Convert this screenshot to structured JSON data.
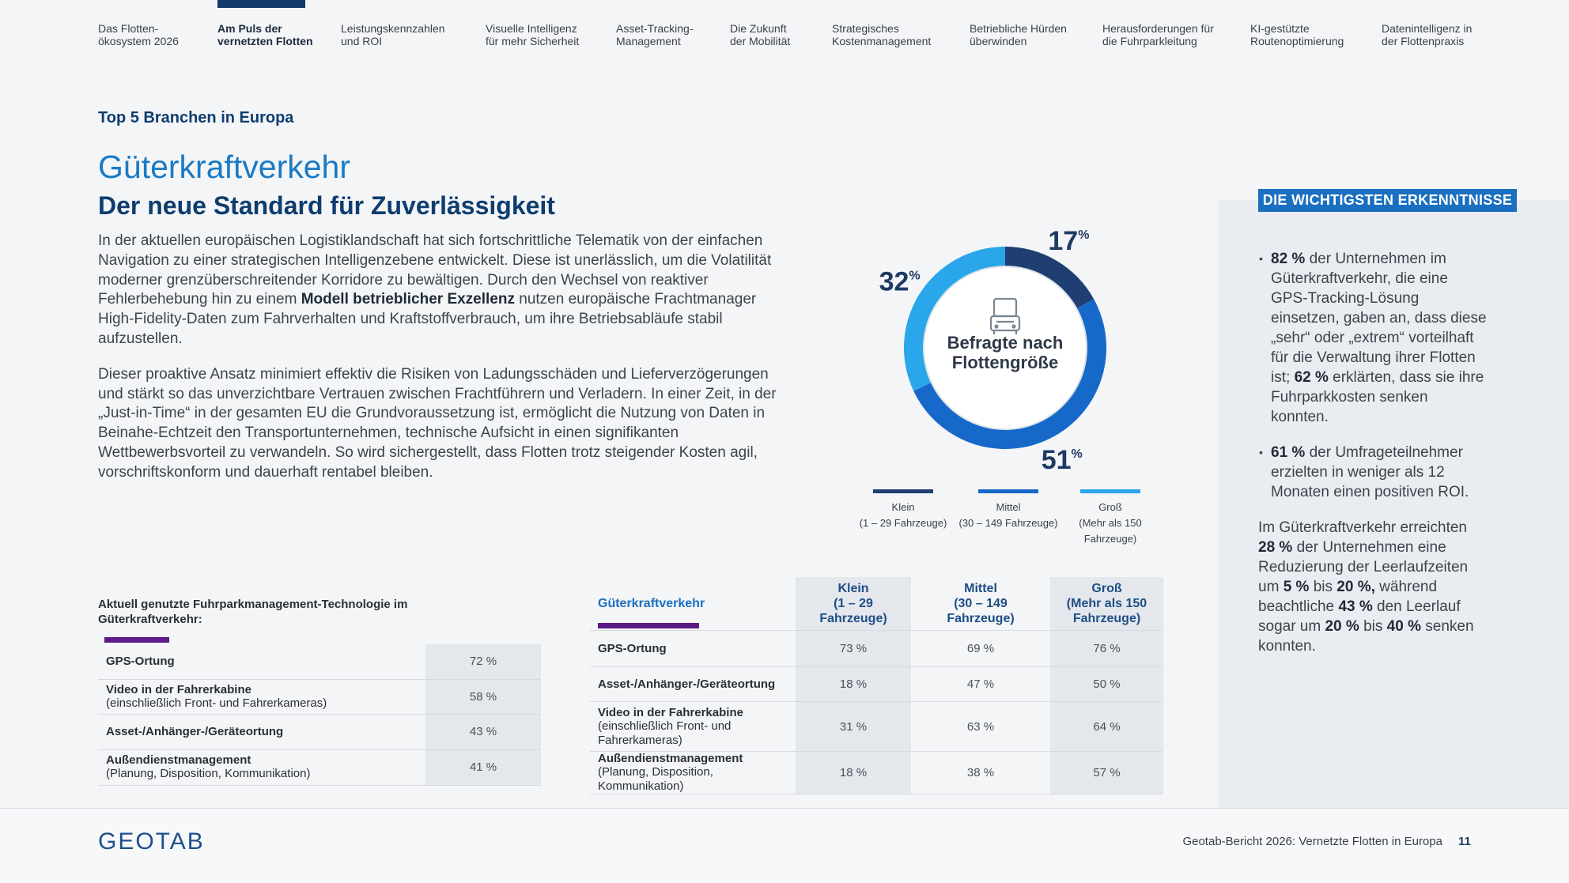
{
  "nav": [
    "Das Flotten-\nökosystem 2026",
    "Am Puls der\nvernetzten Flotten",
    "Leistungskennzahlen\nund ROI",
    "Visuelle Intelligenz\nfür mehr Sicherheit",
    "Asset-Tracking-\nManagement",
    "Die Zukunft\nder Mobilität",
    "Strategisches\nKostenmanagement",
    "Betriebliche Hürden\nüberwinden",
    "Herausforderungen für\ndie Fuhrparkleitung",
    "KI-gestützte\nRoutenoptimierung",
    "Datenintelligenz in\nder Flottenpraxis"
  ],
  "section_label": "Top 5 Branchen in Europa",
  "title": "Güterkraftverkehr",
  "subtitle": "Der neue Standard für Zuverlässigkeit",
  "body": [
    [
      "In der aktuellen europäischen Logistiklandschaft hat sich fortschrittliche Telematik von der einfachen Navigation zu einer strategischen Intelligenzebene entwickelt. Diese ist unerlässlich, um die Volatilität moderner grenzüberschreitender Korridore zu bewältigen. Durch den Wechsel von reaktiver Fehlerbehebung hin zu einem ",
      {
        "bold": "Modell betrieblicher Exzellenz"
      },
      " nutzen europäische Frachtmanager High-Fidelity-Daten zum Fahrverhalten und Kraftstoffverbrauch, um ihre Betriebsabläufe stabil aufzustellen."
    ],
    [
      "Dieser proaktive Ansatz minimiert effektiv die Risiken von Ladungsschäden und Lieferverzögerungen und stärkt so das unverzichtbare Vertrauen zwischen Frachtführern und Verladern. In einer Zeit, in der „Just-in-Time“ in der gesamten EU die Grundvoraussetzung ist, ermöglicht die Nutzung von Daten in Beinahe-Echtzeit den Transportunternehmen, technische Aufsicht in einen signifikanten Wettbewerbsvorteil zu verwandeln. So wird sichergestellt, dass Flotten trotz steigender Kosten agil, vorschriftskonform und dauerhaft rentabel bleiben."
    ]
  ],
  "chart_data": {
    "type": "donut",
    "center_label": "Befragte nach\nFlottengröße",
    "categories": [
      "Klein\n(1 – 29 Fahrzeuge)",
      "Mittel\n(30 – 149 Fahrzeuge)",
      "Groß\n(Mehr als 150 Fahrzeuge)"
    ],
    "values": [
      17,
      51,
      32
    ],
    "value_labels": [
      "17%",
      "51%",
      "32%"
    ],
    "colors": [
      "#1f3f73",
      "#1669c9",
      "#2aa6ea"
    ]
  },
  "tech_table": {
    "title": "Aktuell genutzte Fuhrparkmanagement-Technologie im Güterkraftverkehr:",
    "rows": [
      {
        "label": "GPS-Ortung",
        "value": "72 %"
      },
      {
        "label": "Video in der Fahrerkabine",
        "note": "(einschließlich Front- und Fahrerkameras)",
        "value": "58 %"
      },
      {
        "label": "Asset-/Anhänger-/Geräteortung",
        "value": "43 %"
      },
      {
        "label": "Außendienstmanagement",
        "note": "(Planung, Disposition, Kommunikation)",
        "value": "41 %"
      }
    ]
  },
  "size_table": {
    "header": [
      "Güterkraftverkehr",
      "Klein\n(1 – 29 Fahrzeuge)",
      "Mittel\n(30 – 149 Fahrzeuge)",
      "Groß\n(Mehr als 150\nFahrzeuge)"
    ],
    "rows": [
      {
        "label": "GPS-Ortung",
        "values": [
          "73 %",
          "69 %",
          "76 %"
        ]
      },
      {
        "label": "Asset-/Anhänger-/Geräteortung",
        "values": [
          "18 %",
          "47 %",
          "50 %"
        ]
      },
      {
        "label": "Video in der Fahrerkabine",
        "note": "(einschließlich Front- und Fahrerkameras)",
        "values": [
          "31 %",
          "63 %",
          "64 %"
        ]
      },
      {
        "label": "Außendienstmanagement",
        "note": "(Planung, Disposition, Kommunikation)",
        "values": [
          "18 %",
          "38 %",
          "57 %"
        ]
      }
    ]
  },
  "insights": {
    "heading": "DIE WICHTIGSTEN ERKENNTNISSE",
    "bullets": [
      [
        {
          "bold": "82 %"
        },
        " der Unternehmen im Güterkraftverkehr, die eine GPS-Tracking-Lösung einsetzen, gaben an, dass diese „sehr“ oder „extrem“ vorteilhaft für die Verwaltung ihrer Flotten ist; ",
        {
          "bold": "62 %"
        },
        " erklärten, dass sie ihre Fuhrparkkosten senken konnten."
      ],
      [
        {
          "bold": "61 %"
        },
        " der Umfrageteilnehmer erzielten in weniger als 12 Monaten einen positiven ROI."
      ]
    ],
    "summary": [
      "Im Güterkraftverkehr erreichten ",
      {
        "bold": "28 %"
      },
      " der Unternehmen eine Reduzierung der Leerlaufzeiten um ",
      {
        "bold": "5 %"
      },
      " bis ",
      {
        "bold": "20 %,"
      },
      " während beachtliche ",
      {
        "bold": "43 %"
      },
      " den Leerlauf sogar um ",
      {
        "bold": "20 %"
      },
      " bis ",
      {
        "bold": "40 %"
      },
      " senken konnten."
    ]
  },
  "footer": {
    "logo": "GEOTAB",
    "report": "Geotab-Bericht 2026: Vernetzte Flotten in Europa",
    "page": "11"
  }
}
